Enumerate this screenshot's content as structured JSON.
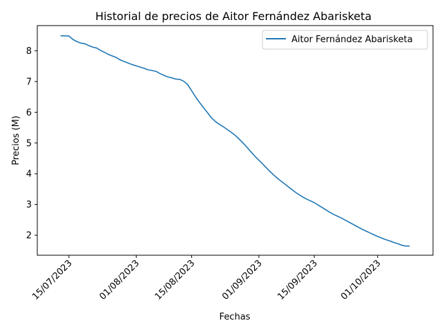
{
  "chart_data": {
    "type": "line",
    "title": "Historial de precios de Aitor Fernández Abarisketa",
    "xlabel": "Fechas",
    "ylabel": "Precios (M)",
    "x_ticks": [
      "15/07/2023",
      "01/08/2023",
      "15/08/2023",
      "01/09/2023",
      "15/09/2023",
      "01/10/2023"
    ],
    "y_ticks": [
      "2",
      "3",
      "4",
      "5",
      "6",
      "7",
      "8"
    ],
    "xlim": [
      "2023-07-07",
      "2023-10-15"
    ],
    "ylim": [
      1.35,
      8.82
    ],
    "legend_position": "top-right",
    "grid": false,
    "series": [
      {
        "name": "Aitor Fernández Abarisketa",
        "color": "#1f77b4",
        "x": [
          "2023-07-13",
          "2023-07-15",
          "2023-07-16",
          "2023-07-17",
          "2023-07-18",
          "2023-07-19",
          "2023-07-20",
          "2023-07-21",
          "2023-07-22",
          "2023-07-23",
          "2023-07-24",
          "2023-07-25",
          "2023-07-26",
          "2023-07-27",
          "2023-07-28",
          "2023-07-29",
          "2023-07-30",
          "2023-07-31",
          "2023-08-01",
          "2023-08-02",
          "2023-08-03",
          "2023-08-04",
          "2023-08-05",
          "2023-08-06",
          "2023-08-07",
          "2023-08-08",
          "2023-08-09",
          "2023-08-10",
          "2023-08-11",
          "2023-08-12",
          "2023-08-13",
          "2023-08-14",
          "2023-08-15",
          "2023-08-16",
          "2023-08-17",
          "2023-08-18",
          "2023-08-19",
          "2023-08-20",
          "2023-08-21",
          "2023-08-22",
          "2023-08-23",
          "2023-08-24",
          "2023-08-25",
          "2023-08-26",
          "2023-08-27",
          "2023-08-28",
          "2023-08-29",
          "2023-08-30",
          "2023-08-31",
          "2023-09-01",
          "2023-09-02",
          "2023-09-03",
          "2023-09-04",
          "2023-09-05",
          "2023-09-06",
          "2023-09-07",
          "2023-09-08",
          "2023-09-09",
          "2023-09-10",
          "2023-09-11",
          "2023-09-12",
          "2023-09-13",
          "2023-09-14",
          "2023-09-15",
          "2023-09-16",
          "2023-09-17",
          "2023-09-18",
          "2023-09-19",
          "2023-09-20",
          "2023-09-21",
          "2023-09-22",
          "2023-09-23",
          "2023-09-24",
          "2023-09-25",
          "2023-09-26",
          "2023-09-27",
          "2023-09-28",
          "2023-09-29",
          "2023-09-30",
          "2023-10-01",
          "2023-10-02",
          "2023-10-03",
          "2023-10-04",
          "2023-10-05",
          "2023-10-06",
          "2023-10-07",
          "2023-10-08",
          "2023-10-09"
        ],
        "y": [
          8.49,
          8.48,
          8.37,
          8.3,
          8.25,
          8.23,
          8.17,
          8.12,
          8.09,
          8.01,
          7.95,
          7.88,
          7.83,
          7.78,
          7.7,
          7.65,
          7.6,
          7.55,
          7.51,
          7.47,
          7.43,
          7.38,
          7.36,
          7.33,
          7.26,
          7.2,
          7.15,
          7.12,
          7.08,
          7.07,
          7.01,
          6.9,
          6.7,
          6.5,
          6.32,
          6.15,
          5.99,
          5.82,
          5.7,
          5.61,
          5.53,
          5.44,
          5.35,
          5.25,
          5.13,
          5.0,
          4.86,
          4.71,
          4.57,
          4.44,
          4.31,
          4.18,
          4.05,
          3.93,
          3.82,
          3.72,
          3.62,
          3.52,
          3.42,
          3.33,
          3.25,
          3.18,
          3.12,
          3.06,
          2.98,
          2.9,
          2.82,
          2.74,
          2.67,
          2.61,
          2.55,
          2.48,
          2.41,
          2.34,
          2.27,
          2.2,
          2.14,
          2.08,
          2.02,
          1.96,
          1.91,
          1.86,
          1.82,
          1.77,
          1.73,
          1.68,
          1.65,
          1.65
        ]
      }
    ]
  }
}
